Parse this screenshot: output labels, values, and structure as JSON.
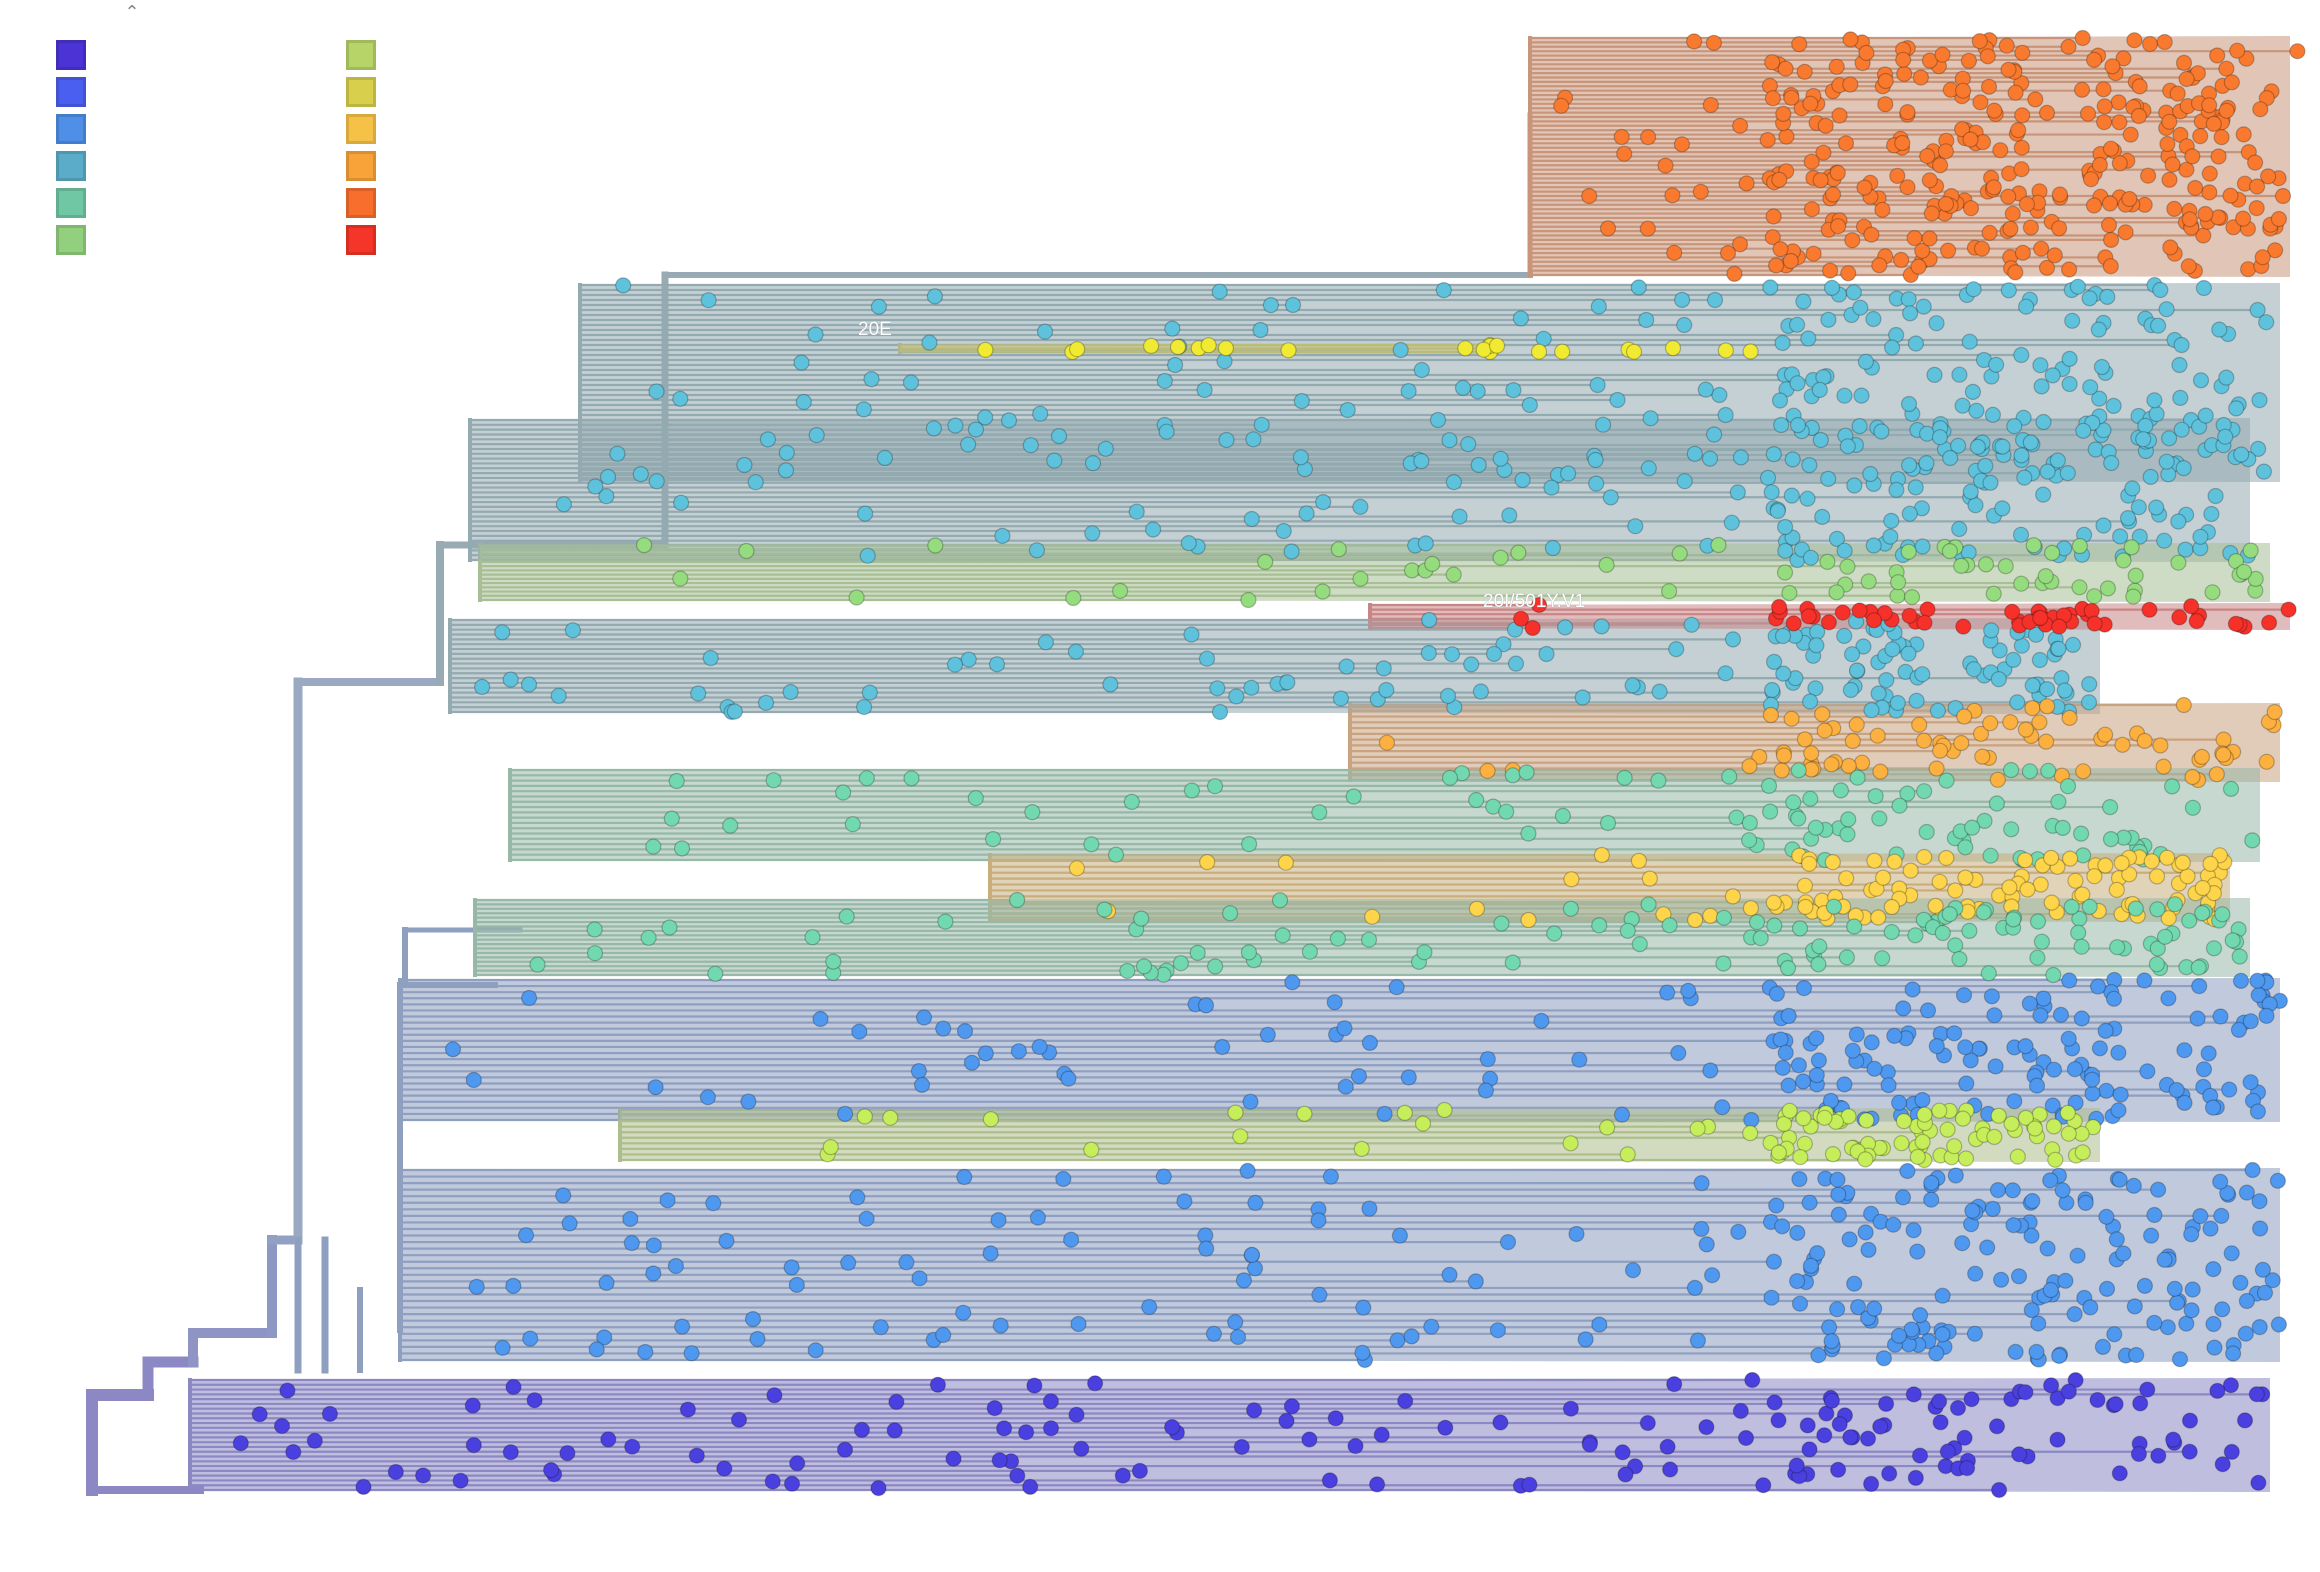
{
  "legend": {
    "toggle_icon": "chevron-up-icon",
    "left_colors": [
      "#4b33d6",
      "#4a5ff0",
      "#4f8fe8",
      "#5aacc8",
      "#6fc7a4",
      "#93d07e"
    ],
    "right_colors": [
      "#b7d468",
      "#d8cf4c",
      "#f5c247",
      "#f8a23a",
      "#f86e2d",
      "#f53527"
    ]
  },
  "tree": {
    "clade_labels": [
      "20E",
      "20I/501Y.V1"
    ],
    "clades": [
      {
        "id": "orange-top",
        "color": "#f97a2f",
        "branch_color": "#c9957a"
      },
      {
        "id": "cyan-upper",
        "color": "#5fc2dc",
        "branch_color": "#93aab0"
      },
      {
        "id": "yellow-20E",
        "color": "#f1ea33",
        "branch_color": "#c9c268"
      },
      {
        "id": "green-upper",
        "color": "#94dc7d",
        "branch_color": "#a8bf95"
      },
      {
        "id": "red-501Y",
        "color": "#f5312a",
        "branch_color": "#c98585"
      },
      {
        "id": "orange-mid",
        "color": "#fbb03f",
        "branch_color": "#c9a380"
      },
      {
        "id": "teal-mid",
        "color": "#72d8b0",
        "branch_color": "#98b8a8"
      },
      {
        "id": "gold-mid",
        "color": "#fdd44a",
        "branch_color": "#c9ae7c"
      },
      {
        "id": "blue-main",
        "color": "#4f98ef",
        "branch_color": "#8e9fc0"
      },
      {
        "id": "lime-mid",
        "color": "#c6ee5b",
        "branch_color": "#adbe8c"
      },
      {
        "id": "indigo-base",
        "color": "#4a40e0",
        "branch_color": "#8c88c4"
      }
    ]
  }
}
